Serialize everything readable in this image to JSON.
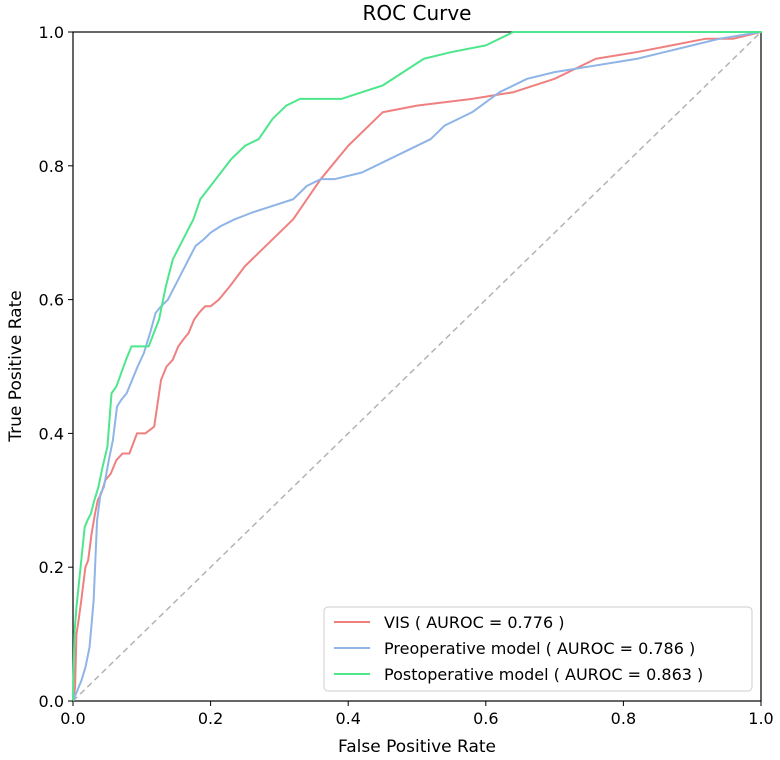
{
  "chart_data": {
    "type": "line",
    "title": "ROC Curve",
    "xlabel": "False Positive Rate",
    "ylabel": "True Positive Rate",
    "xlim": [
      0.0,
      1.0
    ],
    "ylim": [
      0.0,
      1.0
    ],
    "xticks": [
      "0.0",
      "0.2",
      "0.4",
      "0.6",
      "0.8",
      "1.0"
    ],
    "yticks": [
      "0.0",
      "0.2",
      "0.4",
      "0.6",
      "0.8",
      "1.0"
    ],
    "grid": false,
    "legend_position": "lower-right",
    "diagonal": {
      "name": "chance",
      "color": "#b3b3b3",
      "style": "dashed",
      "x": [
        0,
        1
      ],
      "y": [
        0,
        1
      ]
    },
    "series": [
      {
        "name": "VIS",
        "legend": "VIS ( AUROC = 0.776 )",
        "color": "#f08080",
        "x": [
          0.0,
          0.003,
          0.005,
          0.008,
          0.012,
          0.018,
          0.022,
          0.027,
          0.032,
          0.036,
          0.041,
          0.047,
          0.055,
          0.063,
          0.072,
          0.082,
          0.093,
          0.105,
          0.118,
          0.128,
          0.136,
          0.145,
          0.153,
          0.16,
          0.168,
          0.176,
          0.183,
          0.192,
          0.2,
          0.212,
          0.228,
          0.25,
          0.28,
          0.32,
          0.36,
          0.4,
          0.45,
          0.5,
          0.58,
          0.64,
          0.7,
          0.76,
          0.82,
          0.87,
          0.92,
          0.96,
          1.0
        ],
        "y": [
          0.0,
          0.02,
          0.1,
          0.12,
          0.15,
          0.2,
          0.21,
          0.25,
          0.28,
          0.3,
          0.31,
          0.33,
          0.34,
          0.36,
          0.37,
          0.37,
          0.4,
          0.4,
          0.41,
          0.48,
          0.5,
          0.51,
          0.53,
          0.54,
          0.55,
          0.57,
          0.58,
          0.59,
          0.59,
          0.6,
          0.62,
          0.65,
          0.68,
          0.72,
          0.78,
          0.83,
          0.88,
          0.89,
          0.9,
          0.91,
          0.93,
          0.96,
          0.97,
          0.98,
          0.99,
          0.99,
          1.0
        ]
      },
      {
        "name": "Preoperative model",
        "legend": "Preoperative model ( AUROC = 0.786 )",
        "color": "#8fb4e6",
        "x": [
          0.0,
          0.008,
          0.012,
          0.018,
          0.024,
          0.03,
          0.035,
          0.04,
          0.045,
          0.052,
          0.058,
          0.064,
          0.07,
          0.078,
          0.086,
          0.094,
          0.103,
          0.112,
          0.12,
          0.128,
          0.138,
          0.148,
          0.158,
          0.168,
          0.178,
          0.19,
          0.2,
          0.215,
          0.235,
          0.26,
          0.29,
          0.32,
          0.34,
          0.36,
          0.38,
          0.42,
          0.44,
          0.48,
          0.52,
          0.54,
          0.58,
          0.62,
          0.66,
          0.7,
          0.76,
          0.82,
          0.86,
          0.9,
          0.94,
          1.0
        ],
        "y": [
          0.0,
          0.02,
          0.03,
          0.05,
          0.08,
          0.15,
          0.27,
          0.31,
          0.32,
          0.36,
          0.39,
          0.44,
          0.45,
          0.46,
          0.48,
          0.5,
          0.52,
          0.55,
          0.58,
          0.59,
          0.6,
          0.62,
          0.64,
          0.66,
          0.68,
          0.69,
          0.7,
          0.71,
          0.72,
          0.73,
          0.74,
          0.75,
          0.77,
          0.78,
          0.78,
          0.79,
          0.8,
          0.82,
          0.84,
          0.86,
          0.88,
          0.91,
          0.93,
          0.94,
          0.95,
          0.96,
          0.97,
          0.98,
          0.99,
          1.0
        ]
      },
      {
        "name": "Postoperative model",
        "legend": "Postoperative model ( AUROC = 0.863 )",
        "color": "#4ee68c",
        "x": [
          0.0,
          0.002,
          0.005,
          0.009,
          0.013,
          0.017,
          0.021,
          0.026,
          0.031,
          0.037,
          0.043,
          0.05,
          0.056,
          0.063,
          0.07,
          0.077,
          0.085,
          0.095,
          0.11,
          0.125,
          0.135,
          0.145,
          0.155,
          0.165,
          0.175,
          0.185,
          0.2,
          0.215,
          0.23,
          0.25,
          0.27,
          0.29,
          0.31,
          0.33,
          0.36,
          0.39,
          0.42,
          0.45,
          0.48,
          0.51,
          0.55,
          0.6,
          0.64,
          0.7,
          0.8,
          0.9,
          1.0
        ],
        "y": [
          0.0,
          0.1,
          0.14,
          0.18,
          0.22,
          0.26,
          0.27,
          0.28,
          0.3,
          0.32,
          0.35,
          0.38,
          0.46,
          0.47,
          0.49,
          0.51,
          0.53,
          0.53,
          0.53,
          0.57,
          0.62,
          0.66,
          0.68,
          0.7,
          0.72,
          0.75,
          0.77,
          0.79,
          0.81,
          0.83,
          0.84,
          0.87,
          0.89,
          0.9,
          0.9,
          0.9,
          0.91,
          0.92,
          0.94,
          0.96,
          0.97,
          0.98,
          1.0,
          1.0,
          1.0,
          1.0,
          1.0
        ]
      }
    ]
  }
}
